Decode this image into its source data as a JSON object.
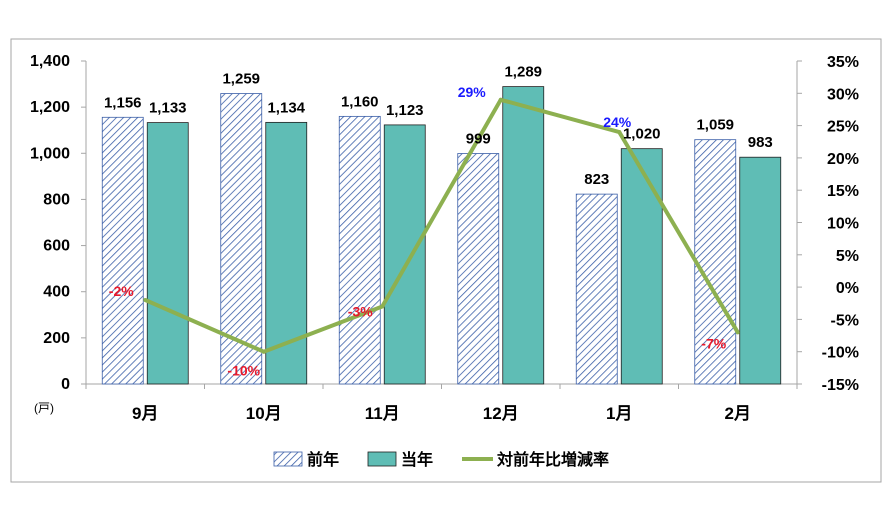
{
  "chart_data": {
    "type": "bar",
    "categories": [
      "9月",
      "10月",
      "11月",
      "12月",
      "1月",
      "2月"
    ],
    "series": [
      {
        "name": "前年",
        "type": "bar",
        "axis": "left",
        "values": [
          1156,
          1259,
          1160,
          999,
          823,
          1059
        ],
        "labels": [
          "1,156",
          "1,259",
          "1,160",
          "999",
          "823",
          "1,059"
        ],
        "pattern": "diagonal-hatch",
        "color": "#3b5fa8"
      },
      {
        "name": "当年",
        "type": "bar",
        "axis": "left",
        "values": [
          1133,
          1134,
          1123,
          1289,
          1020,
          983
        ],
        "labels": [
          "1,133",
          "1,134",
          "1,123",
          "1,289",
          "1,020",
          "983"
        ],
        "color": "#5fbdb5"
      },
      {
        "name": "対前年比増減率",
        "type": "line",
        "axis": "right",
        "values": [
          -2,
          -10,
          -3,
          29,
          24,
          -7
        ],
        "labels": [
          "-2%",
          "-10%",
          "-3%",
          "29%",
          "24%",
          "-7%"
        ],
        "color": "#8db050"
      }
    ],
    "ylim": [
      0,
      1400
    ],
    "yticks": [
      "0",
      "200",
      "400",
      "600",
      "800",
      "1,000",
      "1,200",
      "1,400"
    ],
    "y2lim": [
      -15,
      35
    ],
    "y2ticks": [
      "-15%",
      "-10%",
      "-5%",
      "0%",
      "5%",
      "10%",
      "15%",
      "20%",
      "25%",
      "30%",
      "35%"
    ],
    "unit_label": "(戸)",
    "legend_position": "bottom",
    "grid": false,
    "positive_label_color": "#1a1aff",
    "negative_label_color": "#e8192c"
  }
}
